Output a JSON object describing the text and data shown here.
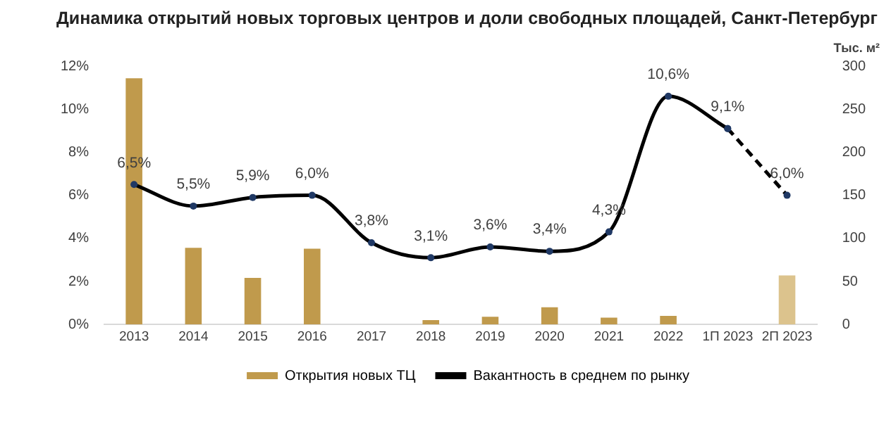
{
  "chart_data": {
    "type": "bar",
    "title": "Динамика открытий новых торговых центров и доли свободных площадей, Санкт-Петербург",
    "categories": [
      "2013",
      "2014",
      "2015",
      "2016",
      "2017",
      "2018",
      "2019",
      "2020",
      "2021",
      "2022",
      "1П 2023",
      "2П 2023"
    ],
    "series": [
      {
        "name": "Открытия новых ТЦ",
        "axis": "y2",
        "color": "#c09a4c",
        "colors": [
          "#c09a4c",
          "#c09a4c",
          "#c09a4c",
          "#c09a4c",
          "#c09a4c",
          "#c09a4c",
          "#c09a4c",
          "#c09a4c",
          "#c09a4c",
          "#c09a4c",
          "#c09a4c",
          "#dcc38d"
        ],
        "values": [
          286,
          89,
          54,
          88,
          0,
          5,
          9,
          20,
          8,
          10,
          0,
          57
        ]
      },
      {
        "name": "Вакантность в среднем по рынку",
        "type": "line",
        "color": "#000000",
        "marker": "circle",
        "line_style": "solid",
        "values": [
          6.5,
          5.5,
          5.9,
          6.0,
          3.8,
          3.1,
          3.6,
          3.4,
          4.3,
          10.6,
          9.1,
          null
        ],
        "value_labels": [
          "6,5%",
          "5,5%",
          "5,9%",
          "6,0%",
          "3,8%",
          "3,1%",
          "3,6%",
          "3,4%",
          "4,3%",
          "10,6%",
          "9,1%",
          null
        ]
      },
      {
        "type": "line",
        "color": "#000000",
        "marker": "circle",
        "line_style": "dashed",
        "values": [
          null,
          null,
          null,
          null,
          null,
          null,
          null,
          null,
          null,
          null,
          9.1,
          6.0
        ],
        "value_labels": [
          null,
          null,
          null,
          null,
          null,
          null,
          null,
          null,
          null,
          null,
          null,
          "6,0%"
        ]
      }
    ],
    "ylim": [
      0,
      12
    ],
    "yticks": [
      {
        "value": 0,
        "label": "0%"
      },
      {
        "value": 2,
        "label": "2%"
      },
      {
        "value": 4,
        "label": "4%"
      },
      {
        "value": 6,
        "label": "6%"
      },
      {
        "value": 8,
        "label": "8%"
      },
      {
        "value": 10,
        "label": "10%"
      },
      {
        "value": 12,
        "label": "12%"
      }
    ],
    "y2lim": [
      0,
      300
    ],
    "y2ticks": [
      0,
      50,
      100,
      150,
      200,
      250,
      300
    ],
    "y2label": "Тыс. м²",
    "grid": false,
    "legend": "bottom"
  }
}
